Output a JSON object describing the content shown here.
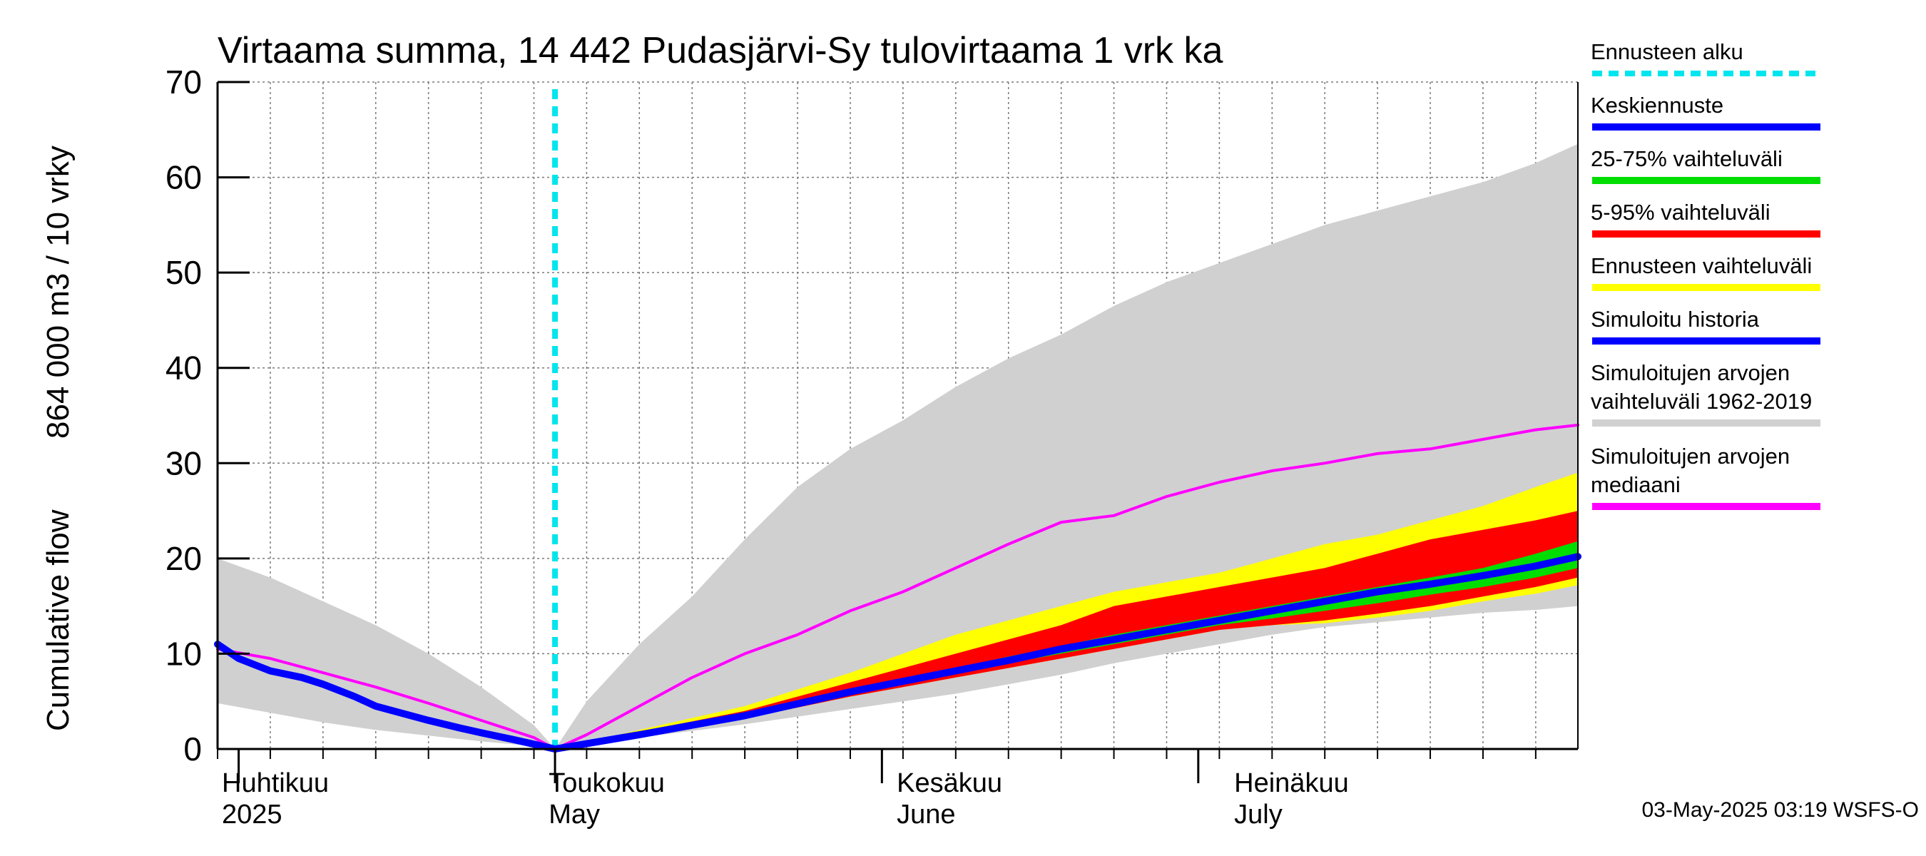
{
  "chart_data": {
    "type": "area",
    "title": "Virtaama summa, 14 442 Pudasjärvi-Sy tulovirtaama 1 vrk ka",
    "ylabel_fi": "864 000 m3 / 10 vrky",
    "ylabel_en": "Cumulative flow",
    "ylim": [
      0,
      70
    ],
    "yticks": [
      0,
      10,
      20,
      30,
      40,
      50,
      60,
      70
    ],
    "x_range_days": [
      0,
      129
    ],
    "forecast_start_day": 32,
    "month_starts": [
      2,
      32,
      63,
      93
    ],
    "month_labels": [
      {
        "fi": "Huhtikuu",
        "en": "2025",
        "day": 0
      },
      {
        "fi": "Toukokuu",
        "en": "May",
        "day": 31
      },
      {
        "fi": "Kesäkuu",
        "en": "June",
        "day": 64
      },
      {
        "fi": "Heinäkuu",
        "en": "July",
        "day": 96
      }
    ],
    "series": [
      {
        "name": "Simuloitujen arvojen vaihteluväli 1962-2019",
        "color": "#d0d0d0",
        "kind": "band",
        "x": [
          0,
          5,
          10,
          15,
          20,
          25,
          30,
          32,
          35,
          40,
          45,
          50,
          55,
          60,
          65,
          70,
          75,
          80,
          85,
          90,
          95,
          100,
          105,
          110,
          115,
          120,
          125,
          129
        ],
        "upper": [
          20,
          18,
          15.5,
          13,
          10,
          6.5,
          2.5,
          0,
          5,
          11,
          16,
          22,
          27.5,
          31.5,
          34.5,
          38,
          41,
          43.5,
          46.5,
          49,
          51,
          53,
          55,
          56.5,
          58,
          59.5,
          61.5,
          63.5
        ],
        "lower": [
          4.8,
          3.8,
          2.8,
          2,
          1.4,
          0.8,
          0.3,
          0,
          0.5,
          1.2,
          1.9,
          2.6,
          3.4,
          4.2,
          5,
          5.8,
          6.8,
          7.8,
          9,
          10,
          11,
          12,
          12.8,
          13.3,
          13.8,
          14.3,
          14.6,
          15
        ]
      },
      {
        "name": "Ennusteen vaihteluväli",
        "color": "#ffff00",
        "kind": "band",
        "x": [
          32,
          40,
          50,
          60,
          65,
          70,
          75,
          80,
          85,
          90,
          95,
          100,
          105,
          110,
          115,
          120,
          125,
          129
        ],
        "upper": [
          0,
          2,
          4.5,
          8,
          10,
          12,
          13.5,
          15,
          16.5,
          17.5,
          18.5,
          20,
          21.5,
          22.5,
          24,
          25.5,
          27.5,
          29
        ],
        "lower": [
          0,
          1.3,
          3.2,
          5.5,
          6.5,
          7.5,
          8.5,
          9.5,
          10.5,
          11.5,
          12.5,
          13,
          13.2,
          13.8,
          14.5,
          15.5,
          16.3,
          17.2
        ]
      },
      {
        "name": "5-95% vaihteluväli",
        "color": "#ff0000",
        "kind": "band",
        "x": [
          32,
          40,
          50,
          60,
          65,
          70,
          75,
          80,
          85,
          90,
          95,
          100,
          105,
          110,
          115,
          120,
          125,
          129
        ],
        "upper": [
          0,
          1.8,
          4,
          7,
          8.5,
          10,
          11.5,
          13,
          15,
          16,
          17,
          18,
          19,
          20.5,
          22,
          23,
          24,
          25
        ],
        "lower": [
          0,
          1.3,
          3.2,
          5.5,
          6.5,
          7.5,
          8.5,
          9.5,
          10.5,
          11.5,
          12.5,
          13,
          13.5,
          14.2,
          15,
          16,
          17,
          18
        ]
      },
      {
        "name": "25-75% vaihteluväli",
        "color": "#00dd00",
        "kind": "band",
        "x": [
          32,
          40,
          50,
          60,
          65,
          70,
          75,
          80,
          85,
          90,
          95,
          100,
          105,
          110,
          115,
          120,
          125,
          129
        ],
        "upper": [
          0,
          1.5,
          3.7,
          6.2,
          7.3,
          8.5,
          9.7,
          10.8,
          12,
          13,
          14,
          15,
          16,
          17,
          18,
          19,
          20.5,
          21.8
        ],
        "lower": [
          0,
          1.4,
          3.4,
          5.8,
          6.8,
          7.9,
          9,
          10,
          11,
          12,
          13,
          13.7,
          14.5,
          15.3,
          16.2,
          17,
          18,
          19
        ]
      },
      {
        "name": "Simuloitujen arvojen mediaani",
        "color": "#ff00ff",
        "kind": "line",
        "width": 4,
        "x": [
          0,
          5,
          10,
          15,
          20,
          25,
          30,
          32,
          35,
          40,
          45,
          50,
          55,
          60,
          65,
          70,
          75,
          80,
          85,
          90,
          95,
          100,
          105,
          110,
          115,
          120,
          125,
          129
        ],
        "values": [
          10.5,
          9.5,
          8,
          6.5,
          4.8,
          3,
          1.2,
          0,
          1.5,
          4.5,
          7.5,
          10,
          12,
          14.5,
          16.5,
          19,
          21.5,
          23.8,
          24.5,
          26.5,
          28,
          29.2,
          30,
          31,
          31.5,
          32.5,
          33.5,
          34
        ]
      },
      {
        "name": "Simuloitu historia",
        "color": "#0000ff",
        "kind": "line",
        "width": 10,
        "x": [
          0,
          2,
          5,
          8,
          10,
          13,
          15,
          18,
          20,
          23,
          25,
          28,
          30,
          32
        ],
        "values": [
          11,
          9.5,
          8.2,
          7.5,
          6.8,
          5.5,
          4.5,
          3.6,
          3,
          2.2,
          1.7,
          1,
          0.5,
          0
        ]
      },
      {
        "name": "Keskiennuste",
        "color": "#0000ff",
        "kind": "line",
        "width": 10,
        "x": [
          32,
          40,
          50,
          60,
          65,
          70,
          75,
          80,
          85,
          90,
          95,
          100,
          105,
          110,
          115,
          120,
          125,
          129
        ],
        "values": [
          0,
          1.5,
          3.5,
          6,
          7.1,
          8.2,
          9.3,
          10.5,
          11.5,
          12.5,
          13.5,
          14.5,
          15.5,
          16.5,
          17.3,
          18.2,
          19.2,
          20.2
        ]
      },
      {
        "name": "Ennusteen alku",
        "color": "#00e5ee",
        "kind": "vline",
        "day": 32
      }
    ],
    "legend": [
      {
        "label": "Ennusteen alku",
        "color": "#00e5ee",
        "style": "dashed"
      },
      {
        "label": "Keskiennuste",
        "color": "#0000ff",
        "style": "solid"
      },
      {
        "label": "25-75% vaihteluväli",
        "color": "#00dd00",
        "style": "solid"
      },
      {
        "label": "5-95% vaihteluväli",
        "color": "#ff0000",
        "style": "solid"
      },
      {
        "label": "Ennusteen vaihteluväli",
        "color": "#ffff00",
        "style": "solid"
      },
      {
        "label": "Simuloitu historia",
        "color": "#0000ff",
        "style": "solid"
      },
      {
        "label": "Simuloitujen arvojen vaihteluväli 1962-2019",
        "label_line1": "Simuloitujen arvojen",
        "label_line2": "vaihteluväli 1962-2019",
        "color": "#d0d0d0",
        "style": "solid"
      },
      {
        "label": "Simuloitujen arvojen mediaani",
        "label_line1": "Simuloitujen arvojen",
        "label_line2": "mediaani",
        "color": "#ff00ff",
        "style": "solid"
      }
    ],
    "timestamp": "03-May-2025 03:19 WSFS-O"
  }
}
